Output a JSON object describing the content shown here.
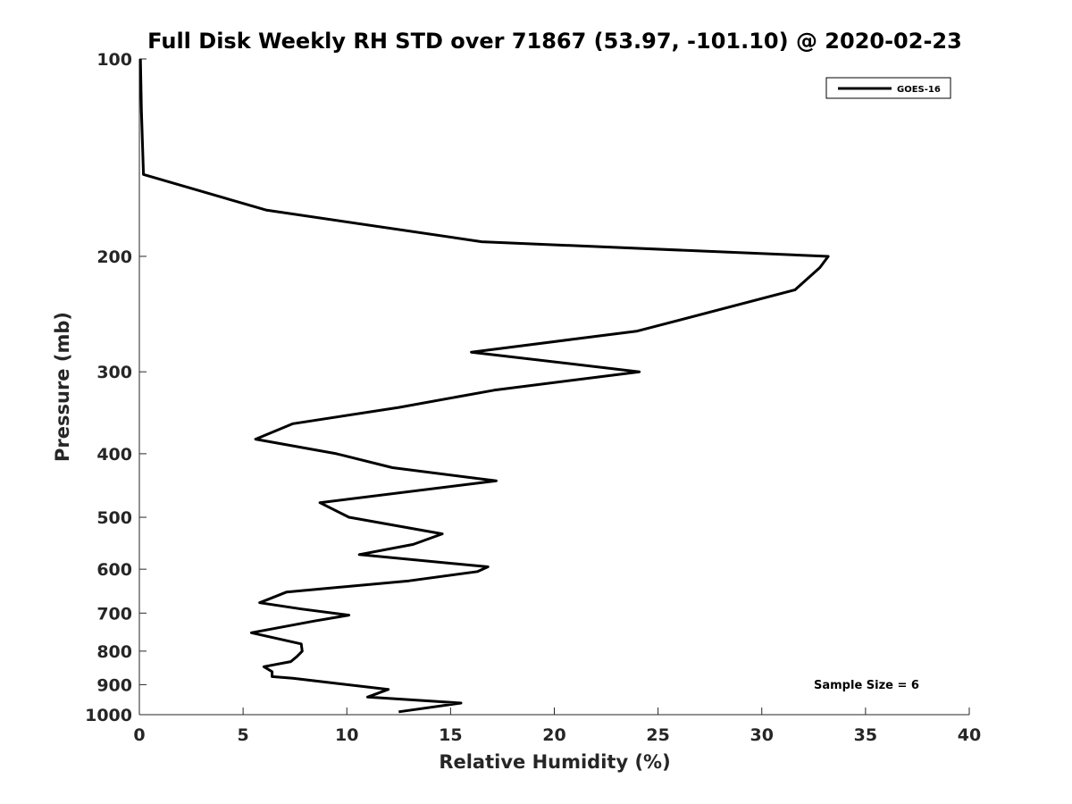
{
  "chart_data": {
    "type": "line",
    "title": "Full Disk Weekly RH STD over 71867 (53.97, -101.10) @ 2020-02-23",
    "xlabel": "Relative Humidity (%)",
    "ylabel": "Pressure (mb)",
    "xlim": [
      0,
      40
    ],
    "ylim": [
      100,
      1000
    ],
    "y_scale": "log",
    "y_reversed": true,
    "x_ticks": [
      "0",
      "5",
      "10",
      "15",
      "20",
      "25",
      "30",
      "35",
      "40"
    ],
    "y_ticks": [
      "100",
      "200",
      "300",
      "400",
      "500",
      "600",
      "700",
      "800",
      "900",
      "1000"
    ],
    "grid": false,
    "legend": "top-right",
    "series": [
      {
        "name": "GOES-16",
        "color": "#000000",
        "x": [
          0.05,
          0.1,
          0.2,
          6.1,
          16.5,
          33.2,
          32.8,
          31.6,
          24.0,
          16.0,
          24.1,
          17.1,
          12.5,
          7.4,
          5.6,
          9.5,
          12.2,
          17.2,
          8.7,
          10.1,
          14.6,
          13.2,
          10.6,
          16.8,
          16.3,
          13.0,
          7.1,
          5.8,
          7.8,
          10.1,
          8.4,
          5.4,
          7.8,
          7.85,
          7.6,
          7.3,
          6.0,
          6.4,
          6.4,
          7.4,
          12.0,
          11.0,
          15.5,
          12.5
        ],
        "y": [
          100,
          120,
          150,
          170,
          190,
          200,
          208,
          225,
          260,
          280,
          300,
          320,
          340,
          360,
          380,
          400,
          420,
          440,
          475,
          500,
          530,
          550,
          570,
          595,
          605,
          625,
          650,
          675,
          690,
          705,
          720,
          750,
          780,
          800,
          815,
          830,
          845,
          860,
          875,
          880,
          915,
          940,
          960,
          990
        ]
      }
    ],
    "annotations": [
      "Sample Size = 6"
    ]
  }
}
